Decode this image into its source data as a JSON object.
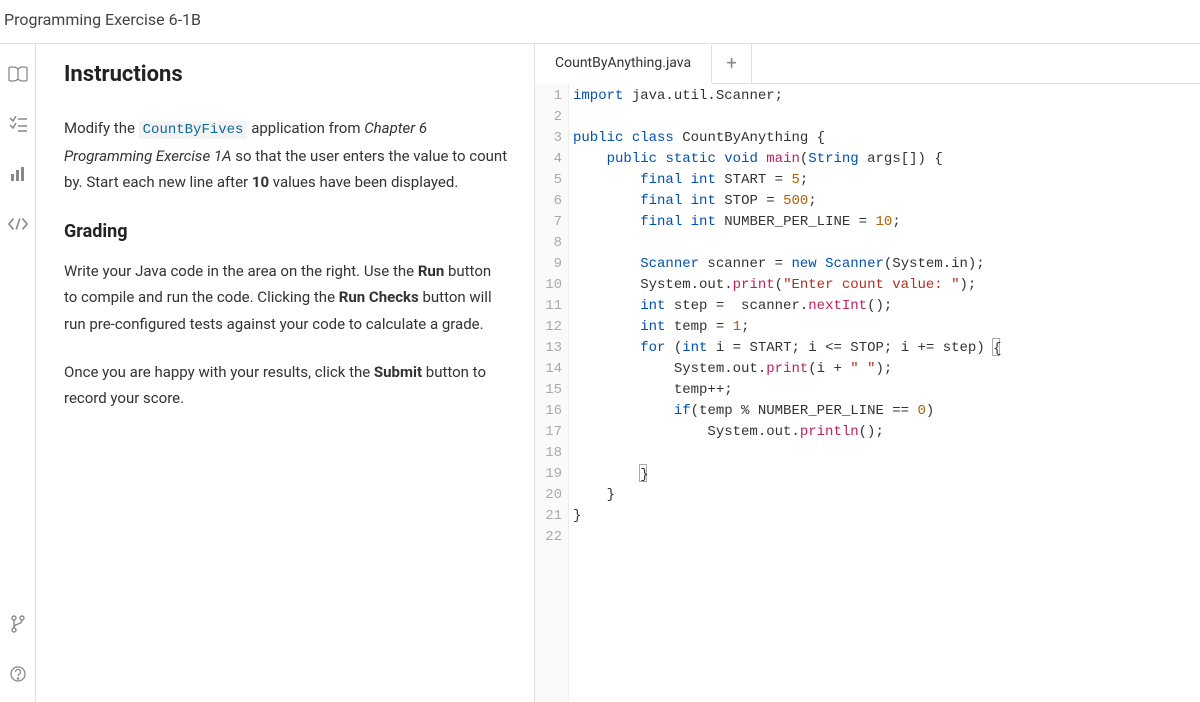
{
  "header": {
    "title": "Programming Exercise 6-1B"
  },
  "sidebar": {
    "icons": [
      {
        "name": "book-icon"
      },
      {
        "name": "checklist-icon"
      },
      {
        "name": "bars-icon"
      },
      {
        "name": "code-icon"
      }
    ],
    "bottom_icons": [
      {
        "name": "branch-icon"
      },
      {
        "name": "help-icon"
      }
    ]
  },
  "instructions": {
    "heading": "Instructions",
    "para1_prefix": "Modify the ",
    "para1_code": "CountByFives",
    "para1_mid": " application from ",
    "para1_italic": "Chapter 6 Programming Exercise 1A",
    "para1_suffix_a": " so that the user enters the value to count by. Start each new line after ",
    "para1_bold": "10",
    "para1_suffix_b": " values have been displayed.",
    "grading_heading": "Grading",
    "para2_a": "Write your Java code in the area on the right. Use the ",
    "para2_b1": "Run",
    "para2_b": " button to compile and run the code. Clicking the ",
    "para2_b2": "Run Checks",
    "para2_c": " button will run pre-configured tests against your code to calculate a grade.",
    "para3_a": "Once you are happy with your results, click the ",
    "para3_b": "Submit",
    "para3_c": " button to record your score."
  },
  "tabs": {
    "active": "CountByAnything.java",
    "plus": "+"
  },
  "code": {
    "lines": [
      {
        "n": 1,
        "html": "<span class='kw'>import</span> java.util.Scanner;"
      },
      {
        "n": 2,
        "html": ""
      },
      {
        "n": 3,
        "html": "<span class='kw'>public</span> <span class='kw'>class</span> <span class='cls'>CountByAnything</span> {"
      },
      {
        "n": 4,
        "html": "    <span class='kw'>public</span> <span class='kw'>static</span> <span class='type'>void</span> <span class='method'>main</span>(<span class='type'>String</span> args[]) {"
      },
      {
        "n": 5,
        "html": "        <span class='kw'>final</span> <span class='type'>int</span> START = <span class='num'>5</span>;"
      },
      {
        "n": 6,
        "html": "        <span class='kw'>final</span> <span class='type'>int</span> STOP = <span class='num'>500</span>;"
      },
      {
        "n": 7,
        "html": "        <span class='kw'>final</span> <span class='type'>int</span> NUMBER_PER_LINE = <span class='num'>10</span>;"
      },
      {
        "n": 8,
        "html": ""
      },
      {
        "n": 9,
        "html": "        <span class='type'>Scanner</span> scanner = <span class='kw'>new</span> <span class='type'>Scanner</span>(System.in);"
      },
      {
        "n": 10,
        "html": "        System.out.<span class='method'>print</span>(<span class='str'>\"Enter count value: \"</span>);"
      },
      {
        "n": 11,
        "html": "        <span class='type'>int</span> step =  scanner.<span class='method'>nextInt</span>();"
      },
      {
        "n": 12,
        "html": "        <span class='type'>int</span> temp = <span class='num'>1</span>;"
      },
      {
        "n": 13,
        "html": "        <span class='kw'>for</span> (<span class='type'>int</span> i = START; i &lt;= STOP; i += step) <span class='cursor-box'>{</span>"
      },
      {
        "n": 14,
        "html": "            System.out.<span class='method'>print</span>(i + <span class='str'>\" \"</span>);"
      },
      {
        "n": 15,
        "html": "            temp++;"
      },
      {
        "n": 16,
        "html": "            <span class='kw'>if</span>(temp % NUMBER_PER_LINE == <span class='num'>0</span>)"
      },
      {
        "n": 17,
        "html": "                System.out.<span class='method'>println</span>();"
      },
      {
        "n": 18,
        "html": ""
      },
      {
        "n": 19,
        "html": "        <span class='cursor-box'>}</span>"
      },
      {
        "n": 20,
        "html": "    }"
      },
      {
        "n": 21,
        "html": "}"
      },
      {
        "n": 22,
        "html": ""
      }
    ]
  }
}
